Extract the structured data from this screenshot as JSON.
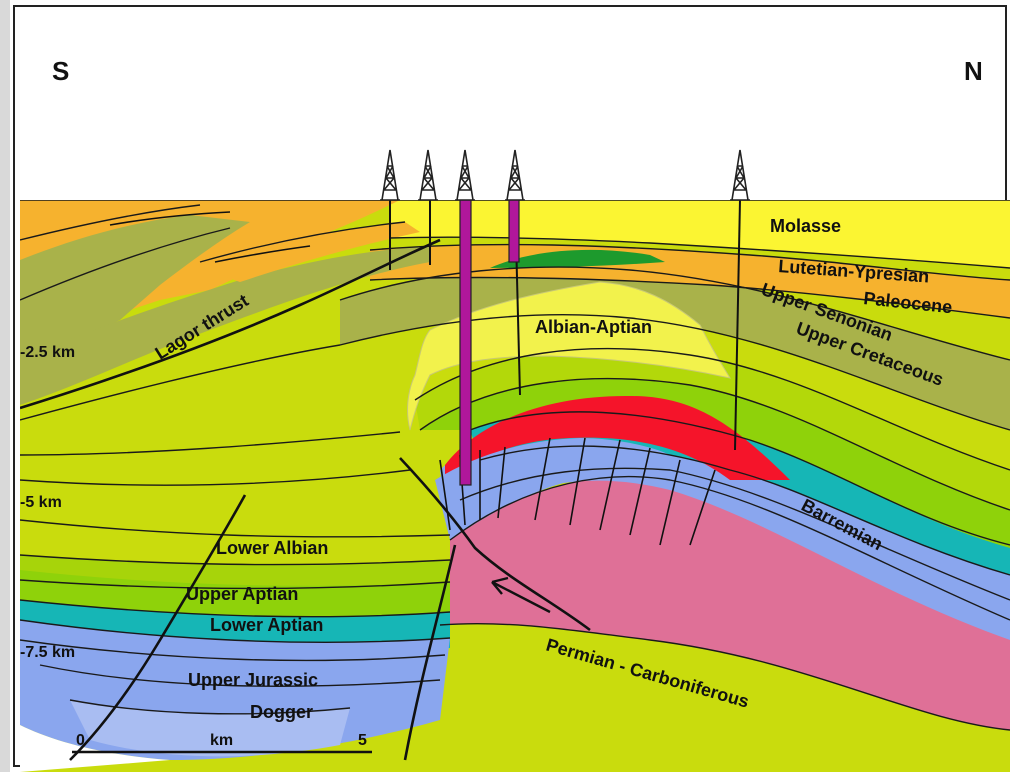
{
  "orientation": {
    "left": "S",
    "right": "N"
  },
  "depths": [
    "-2.5 km",
    "-5 km",
    "-7.5 km"
  ],
  "units": {
    "molasse": "Molasse",
    "lutetian": "Lutetian-Ypresian",
    "paleocene": "Paleocene",
    "upper_senonian": "Upper Senonian",
    "upper_cretaceous": "Upper Cretaceous",
    "albian_aptian": "Albian-Aptian",
    "barremian": "Barremian",
    "lower_albian": "Lower Albian",
    "upper_aptian": "Upper Aptian",
    "lower_aptian": "Lower Aptian",
    "upper_jurassic": "Upper Jurassic",
    "dogger": "Dogger",
    "permian": "Permian - Carboniferous"
  },
  "structures": {
    "thrust": "Lagor thrust"
  },
  "scale": {
    "start": "0",
    "unit": "km",
    "end": "5"
  },
  "colors": {
    "molasse": "#fbf532",
    "orange": "#f6b22e",
    "olive": "#a9b24a",
    "yellow_green": "#c9dc0d",
    "green_band": "#a7d40a",
    "bright_green": "#8fd20a",
    "teal": "#16b6b6",
    "blue": "#8aa6ee",
    "pink": "#df7097",
    "red_reservoir": "#f5142a",
    "dark_green": "#1d9a2d",
    "light_yellow": "#f2f24c",
    "well": "#b0179b"
  }
}
